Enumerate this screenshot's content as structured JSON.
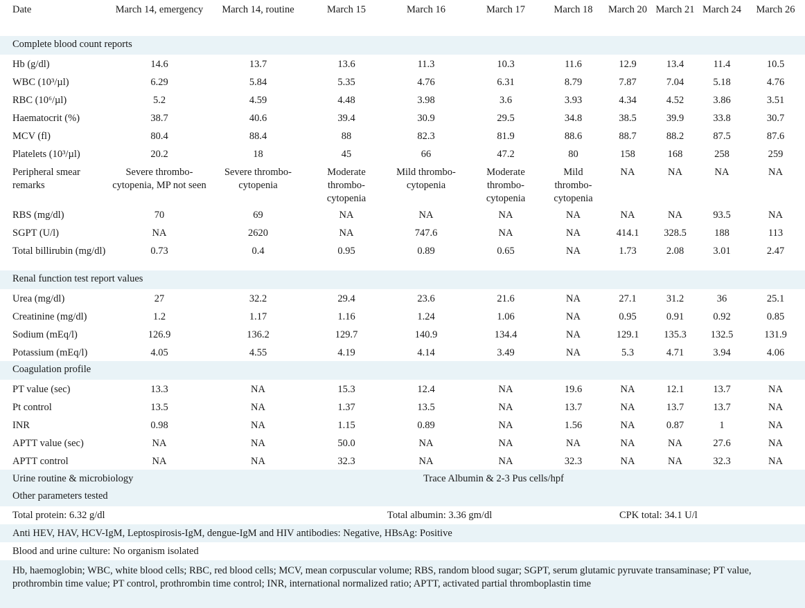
{
  "columns": [
    "Date",
    "March 14, emergency",
    "March 14, routine",
    "March 15",
    "March 16",
    "March 17",
    "March 18",
    "March 20",
    "March 21",
    "March 24",
    "March 26"
  ],
  "sections": {
    "cbc": "Complete blood count reports",
    "renal": "Renal function test report values",
    "coag": "Coagulation profile",
    "other": "Other parameters tested"
  },
  "cbc_rows": [
    {
      "label": "Hb (g/dl)",
      "values": [
        "14.6",
        "13.7",
        "13.6",
        "11.3",
        "10.3",
        "11.6",
        "12.9",
        "13.4",
        "11.4",
        "10.5"
      ]
    },
    {
      "label": "WBC (10³/µl)",
      "values": [
        "6.29",
        "5.84",
        "5.35",
        "4.76",
        "6.31",
        "8.79",
        "7.87",
        "7.04",
        "5.18",
        "4.76"
      ]
    },
    {
      "label": "RBC (10⁶/µl)",
      "values": [
        "5.2",
        "4.59",
        "4.48",
        "3.98",
        "3.6",
        "3.93",
        "4.34",
        "4.52",
        "3.86",
        "3.51"
      ]
    },
    {
      "label": "Haematocrit (%)",
      "values": [
        "38.7",
        "40.6",
        "39.4",
        "30.9",
        "29.5",
        "34.8",
        "38.5",
        "39.9",
        "33.8",
        "30.7"
      ]
    },
    {
      "label": "MCV (fl)",
      "values": [
        "80.4",
        "88.4",
        "88",
        "82.3",
        "81.9",
        "88.6",
        "88.7",
        "88.2",
        "87.5",
        "87.6"
      ]
    },
    {
      "label": "Platelets (10³/µl)",
      "values": [
        "20.2",
        "18",
        "45",
        "66",
        "47.2",
        "80",
        "158",
        "168",
        "258",
        "259"
      ]
    },
    {
      "label": "Peripheral smear remarks",
      "values": [
        "Severe thrombo-cytopenia, MP not seen",
        "Severe thrombo-cytopenia",
        "Moderate thrombo-cytopenia",
        "Mild thrombo-cytopenia",
        "Moderate thrombo-cytopenia",
        "Mild thrombo-cytopenia",
        "NA",
        "NA",
        "NA",
        "NA"
      ]
    },
    {
      "label": "RBS (mg/dl)",
      "values": [
        "70",
        "69",
        "NA",
        "NA",
        "NA",
        "NA",
        "NA",
        "NA",
        "93.5",
        "NA"
      ]
    },
    {
      "label": "SGPT (U/l)",
      "values": [
        "NA",
        "2620",
        "NA",
        "747.6",
        "NA",
        "NA",
        "414.1",
        "328.5",
        "188",
        "113"
      ]
    },
    {
      "label": "Total billirubin (mg/dl)",
      "values": [
        "0.73",
        "0.4",
        "0.95",
        "0.89",
        "0.65",
        "NA",
        "1.73",
        "2.08",
        "3.01",
        "2.47"
      ]
    }
  ],
  "renal_rows": [
    {
      "label": "Urea (mg/dl)",
      "values": [
        "27",
        "32.2",
        "29.4",
        "23.6",
        "21.6",
        "NA",
        "27.1",
        "31.2",
        "36",
        "25.1"
      ]
    },
    {
      "label": "Creatinine (mg/dl)",
      "values": [
        "1.2",
        "1.17",
        "1.16",
        "1.24",
        "1.06",
        "NA",
        "0.95",
        "0.91",
        "0.92",
        "0.85"
      ]
    },
    {
      "label": "Sodium (mEq/l)",
      "values": [
        "126.9",
        "136.2",
        "129.7",
        "140.9",
        "134.4",
        "NA",
        "129.1",
        "135.3",
        "132.5",
        "131.9"
      ]
    },
    {
      "label": "Potassium (mEq/l)",
      "values": [
        "4.05",
        "4.55",
        "4.19",
        "4.14",
        "3.49",
        "NA",
        "5.3",
        "4.71",
        "3.94",
        "4.06"
      ]
    }
  ],
  "coag_rows": [
    {
      "label": "PT value (sec)",
      "values": [
        "13.3",
        "NA",
        "15.3",
        "12.4",
        "NA",
        "19.6",
        "NA",
        "12.1",
        "13.7",
        "NA"
      ]
    },
    {
      "label": "Pt control",
      "values": [
        "13.5",
        "NA",
        "1.37",
        "13.5",
        "NA",
        "13.7",
        "NA",
        "13.7",
        "13.7",
        "NA"
      ]
    },
    {
      "label": "INR",
      "values": [
        "0.98",
        "NA",
        "1.15",
        "0.89",
        "NA",
        "1.56",
        "NA",
        "0.87",
        "1",
        "NA"
      ]
    },
    {
      "label": "APTT value (sec)",
      "values": [
        "NA",
        "NA",
        "50.0",
        "NA",
        "NA",
        "NA",
        "NA",
        "NA",
        "27.6",
        "NA"
      ]
    },
    {
      "label": "APTT control",
      "values": [
        "NA",
        "NA",
        "32.3",
        "NA",
        "NA",
        "32.3",
        "NA",
        "NA",
        "32.3",
        "NA"
      ]
    }
  ],
  "urine": {
    "label": "Urine routine & microbiology",
    "value": "Trace Albumin & 2-3 Pus cells/hpf"
  },
  "other": {
    "total_protein": "Total protein: 6.32 g/dl",
    "total_albumin": "Total albumin: 3.36 gm/dl",
    "cpk": "CPK total: 34.1 U/l",
    "antibodies": "Anti HEV, HAV, HCV-IgM, Leptospirosis-IgM, dengue-IgM and HIV antibodies: Negative, HBsAg: Positive",
    "culture": "Blood and urine culture: No organism isolated"
  },
  "footnote": "Hb, haemoglobin; WBC, white blood cells; RBC, red blood cells; MCV, mean corpuscular volume; RBS, random blood sugar; SGPT, serum glutamic pyruvate transaminase; PT value, prothrombin time value; PT control, prothrombin time control; INR, international normalized ratio; APTT, activated partial thromboplastin time"
}
